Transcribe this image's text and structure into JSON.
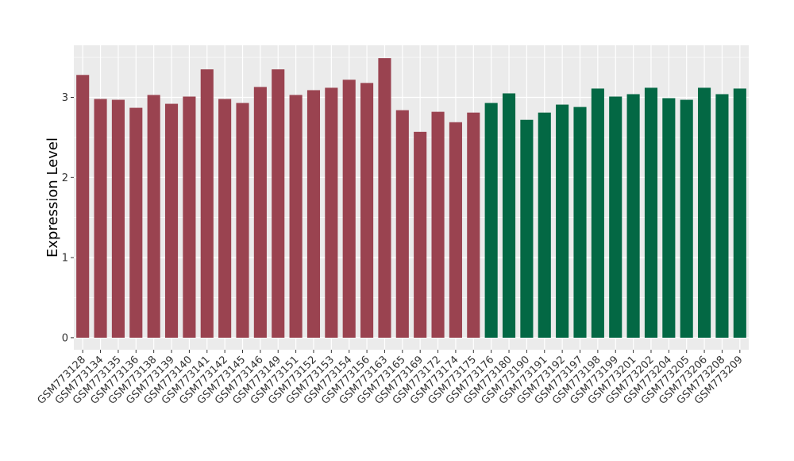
{
  "chart_data": {
    "type": "bar",
    "title": "",
    "xlabel": "",
    "ylabel": "Expression Level",
    "ylim": [
      -0.15,
      3.65
    ],
    "yticks": [
      0,
      1,
      2,
      3
    ],
    "grid": true,
    "legend": "none",
    "colors": {
      "groupA": "#9a4350",
      "groupB": "#036844",
      "panel": "#ebebeb",
      "grid": "#ffffff"
    },
    "categories": [
      "GSM773128",
      "GSM773134",
      "GSM773135",
      "GSM773136",
      "GSM773138",
      "GSM773139",
      "GSM773140",
      "GSM773141",
      "GSM773142",
      "GSM773145",
      "GSM773146",
      "GSM773149",
      "GSM773151",
      "GSM773152",
      "GSM773153",
      "GSM773154",
      "GSM773156",
      "GSM773163",
      "GSM773165",
      "GSM773169",
      "GSM773172",
      "GSM773174",
      "GSM773175",
      "GSM773176",
      "GSM773180",
      "GSM773190",
      "GSM773191",
      "GSM773192",
      "GSM773197",
      "GSM773198",
      "GSM773199",
      "GSM773201",
      "GSM773202",
      "GSM773204",
      "GSM773205",
      "GSM773206",
      "GSM773208",
      "GSM773209"
    ],
    "values": [
      3.28,
      2.98,
      2.97,
      2.87,
      3.03,
      2.92,
      3.01,
      3.35,
      2.98,
      2.93,
      3.13,
      3.35,
      3.03,
      3.09,
      3.12,
      3.22,
      3.18,
      3.49,
      2.84,
      2.57,
      2.82,
      2.69,
      2.81,
      2.93,
      3.05,
      2.72,
      2.81,
      2.91,
      2.88,
      3.11,
      3.01,
      3.04,
      3.12,
      2.99,
      2.97,
      3.12,
      3.04,
      3.11
    ],
    "groups": [
      "A",
      "A",
      "A",
      "A",
      "A",
      "A",
      "A",
      "A",
      "A",
      "A",
      "A",
      "A",
      "A",
      "A",
      "A",
      "A",
      "A",
      "A",
      "A",
      "A",
      "A",
      "A",
      "A",
      "B",
      "B",
      "B",
      "B",
      "B",
      "B",
      "B",
      "B",
      "B",
      "B",
      "B",
      "B",
      "B",
      "B",
      "B"
    ]
  }
}
